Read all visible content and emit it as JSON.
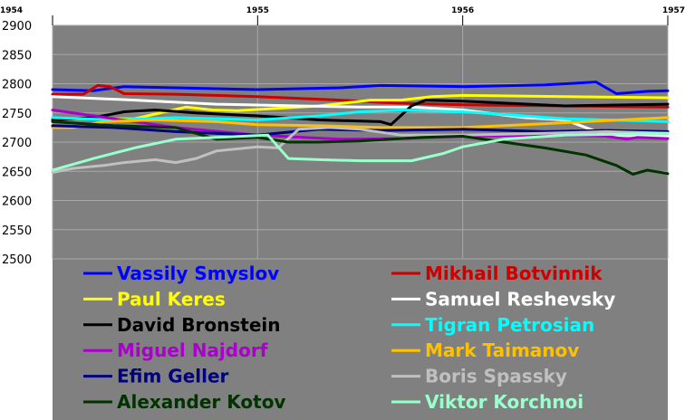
{
  "chart_data": {
    "type": "line",
    "title": "",
    "xlabel": "",
    "ylabel": "",
    "xlim": [
      1954,
      1957
    ],
    "ylim": [
      2500,
      2900
    ],
    "x_ticks": [
      "1954",
      "1955",
      "1956",
      "1957"
    ],
    "y_ticks": [
      "2900",
      "2850",
      "2800",
      "2750",
      "2700",
      "2650",
      "2600",
      "2550",
      "2500"
    ],
    "grid": true,
    "plot_background": "#808080",
    "legend_placement": "bottom-inside",
    "series": [
      {
        "name": "Vassily Smyslov",
        "color": "#0000ff",
        "x": [
          1954.0,
          1954.2,
          1954.35,
          1954.6,
          1955.0,
          1955.4,
          1955.6,
          1956.0,
          1956.4,
          1956.65,
          1956.75,
          1956.9,
          1957.0
        ],
        "y": [
          2790,
          2788,
          2795,
          2793,
          2790,
          2793,
          2797,
          2795,
          2798,
          2803,
          2783,
          2787,
          2788
        ]
      },
      {
        "name": "Mikhail Botvinnik",
        "color": "#cc0000",
        "x": [
          1954.0,
          1954.15,
          1954.22,
          1954.28,
          1954.35,
          1954.6,
          1955.0,
          1955.4,
          1955.6,
          1955.75,
          1956.0,
          1956.5,
          1957.0
        ],
        "y": [
          2782,
          2782,
          2797,
          2795,
          2783,
          2782,
          2778,
          2772,
          2768,
          2766,
          2764,
          2762,
          2760
        ]
      },
      {
        "name": "Paul Keres",
        "color": "#ffff00",
        "x": [
          1954.0,
          1954.4,
          1954.65,
          1954.78,
          1954.9,
          1955.3,
          1955.55,
          1955.7,
          1955.85,
          1956.0,
          1956.5,
          1957.0
        ],
        "y": [
          2740,
          2740,
          2760,
          2755,
          2754,
          2762,
          2772,
          2772,
          2778,
          2780,
          2778,
          2776
        ]
      },
      {
        "name": "Samuel Reshevsky",
        "color": "#ffffff",
        "x": [
          1954.0,
          1954.4,
          1954.8,
          1955.2,
          1955.5,
          1955.75,
          1956.0,
          1956.3,
          1956.5,
          1956.7,
          1957.0
        ],
        "y": [
          2778,
          2772,
          2765,
          2762,
          2760,
          2760,
          2755,
          2742,
          2738,
          2712,
          2710
        ]
      },
      {
        "name": "David Bronstein",
        "color": "#000000",
        "x": [
          1954.0,
          1954.2,
          1954.35,
          1954.5,
          1954.7,
          1955.0,
          1955.3,
          1955.6,
          1955.65,
          1955.75,
          1955.82,
          1956.0,
          1956.5,
          1957.0
        ],
        "y": [
          2738,
          2742,
          2752,
          2755,
          2750,
          2745,
          2738,
          2735,
          2730,
          2762,
          2772,
          2770,
          2762,
          2765
        ]
      },
      {
        "name": "Tigran Petrosian",
        "color": "#00ffff",
        "x": [
          1954.0,
          1954.3,
          1954.6,
          1955.0,
          1955.3,
          1955.5,
          1955.7,
          1956.0,
          1956.3,
          1956.5,
          1957.0
        ],
        "y": [
          2742,
          2738,
          2742,
          2738,
          2745,
          2752,
          2755,
          2752,
          2745,
          2740,
          2735
        ]
      },
      {
        "name": "Miguel Najdorf",
        "color": "#aa00cc",
        "x": [
          1954.0,
          1954.3,
          1954.6,
          1955.0,
          1955.4,
          1955.7,
          1956.0,
          1956.4,
          1956.7,
          1956.8,
          1956.85,
          1957.0
        ],
        "y": [
          2755,
          2740,
          2725,
          2712,
          2705,
          2706,
          2710,
          2712,
          2710,
          2705,
          2708,
          2706
        ]
      },
      {
        "name": "Mark Taimanov",
        "color": "#ffc000",
        "x": [
          1954.0,
          1954.1,
          1954.25,
          1954.5,
          1954.8,
          1955.0,
          1955.3,
          1955.6,
          1956.0,
          1956.3,
          1956.6,
          1957.0
        ],
        "y": [
          2725,
          2725,
          2735,
          2738,
          2735,
          2730,
          2728,
          2725,
          2725,
          2730,
          2735,
          2742
        ]
      },
      {
        "name": "Efim Geller",
        "color": "#000080",
        "x": [
          1954.0,
          1954.3,
          1954.6,
          1955.0,
          1955.3,
          1955.6,
          1956.0,
          1956.4,
          1956.7,
          1957.0
        ],
        "y": [
          2728,
          2725,
          2718,
          2712,
          2722,
          2720,
          2722,
          2718,
          2720,
          2718
        ]
      },
      {
        "name": "Boris Spassky",
        "color": "#c0c0c0",
        "x": [
          1954.0,
          1954.1,
          1954.25,
          1954.35,
          1954.5,
          1954.6,
          1954.7,
          1954.8,
          1955.0,
          1955.1,
          1955.2,
          1955.35,
          1955.5,
          1955.7,
          1956.0,
          1956.4,
          1956.7,
          1957.0
        ],
        "y": [
          2648,
          2655,
          2660,
          2665,
          2670,
          2665,
          2672,
          2685,
          2692,
          2690,
          2722,
          2725,
          2722,
          2712,
          2712,
          2715,
          2718,
          2715
        ]
      },
      {
        "name": "Alexander Kotov",
        "color": "#003300",
        "x": [
          1954.0,
          1954.3,
          1954.6,
          1954.8,
          1955.0,
          1955.15,
          1955.3,
          1955.5,
          1955.8,
          1956.0,
          1956.2,
          1956.4,
          1956.6,
          1956.75,
          1956.83,
          1956.9,
          1957.0
        ],
        "y": [
          2735,
          2728,
          2725,
          2705,
          2708,
          2700,
          2700,
          2702,
          2708,
          2710,
          2700,
          2690,
          2678,
          2660,
          2645,
          2652,
          2646
        ]
      },
      {
        "name": "Viktor Korchnoi",
        "color": "#99ffcc",
        "x": [
          1954.0,
          1954.2,
          1954.4,
          1954.6,
          1954.8,
          1955.05,
          1955.15,
          1955.3,
          1955.5,
          1955.75,
          1955.9,
          1956.0,
          1956.2,
          1956.5,
          1957.0
        ],
        "y": [
          2652,
          2672,
          2690,
          2705,
          2708,
          2712,
          2672,
          2670,
          2668,
          2668,
          2680,
          2692,
          2705,
          2712,
          2715
        ]
      }
    ]
  }
}
